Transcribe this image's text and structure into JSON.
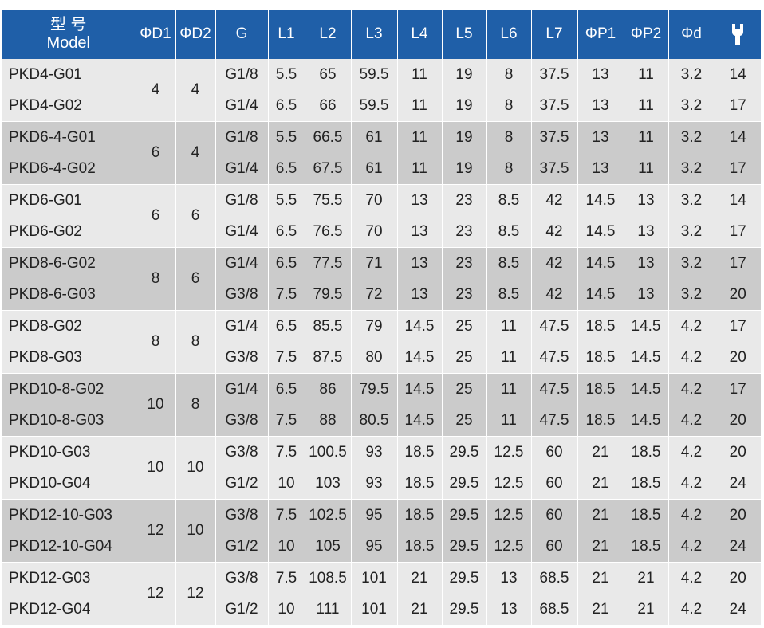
{
  "header": {
    "model_cn": "型 号",
    "model_en": "Model",
    "columns": [
      "ΦD1",
      "ΦD2",
      "G",
      "L1",
      "L2",
      "L3",
      "L4",
      "L5",
      "L6",
      "L7",
      "ΦP1",
      "ΦP2",
      "Φd"
    ],
    "last_column_icon": "open-end-wrench-icon"
  },
  "colors": {
    "header_bg": "#1f5fa8",
    "row_light": "#e9e9e9",
    "row_dark": "#cbcbcb"
  },
  "groups": [
    {
      "d1": "4",
      "d2": "4",
      "rows": [
        [
          "PKD4-G01",
          "G1/8",
          "5.5",
          "65",
          "59.5",
          "11",
          "19",
          "8",
          "37.5",
          "13",
          "11",
          "3.2",
          "14"
        ],
        [
          "PKD4-G02",
          "G1/4",
          "6.5",
          "66",
          "59.5",
          "11",
          "19",
          "8",
          "37.5",
          "13",
          "11",
          "3.2",
          "17"
        ]
      ]
    },
    {
      "d1": "6",
      "d2": "4",
      "rows": [
        [
          "PKD6-4-G01",
          "G1/8",
          "5.5",
          "66.5",
          "61",
          "11",
          "19",
          "8",
          "37.5",
          "13",
          "11",
          "3.2",
          "14"
        ],
        [
          "PKD6-4-G02",
          "G1/4",
          "6.5",
          "67.5",
          "61",
          "11",
          "19",
          "8",
          "37.5",
          "13",
          "11",
          "3.2",
          "17"
        ]
      ]
    },
    {
      "d1": "6",
      "d2": "6",
      "rows": [
        [
          "PKD6-G01",
          "G1/8",
          "5.5",
          "75.5",
          "70",
          "13",
          "23",
          "8.5",
          "42",
          "14.5",
          "13",
          "3.2",
          "14"
        ],
        [
          "PKD6-G02",
          "G1/4",
          "6.5",
          "76.5",
          "70",
          "13",
          "23",
          "8.5",
          "42",
          "14.5",
          "13",
          "3.2",
          "17"
        ]
      ]
    },
    {
      "d1": "8",
      "d2": "6",
      "rows": [
        [
          "PKD8-6-G02",
          "G1/4",
          "6.5",
          "77.5",
          "71",
          "13",
          "23",
          "8.5",
          "42",
          "14.5",
          "13",
          "3.2",
          "17"
        ],
        [
          "PKD8-6-G03",
          "G3/8",
          "7.5",
          "79.5",
          "72",
          "13",
          "23",
          "8.5",
          "42",
          "14.5",
          "13",
          "3.2",
          "20"
        ]
      ]
    },
    {
      "d1": "8",
      "d2": "8",
      "rows": [
        [
          "PKD8-G02",
          "G1/4",
          "6.5",
          "85.5",
          "79",
          "14.5",
          "25",
          "11",
          "47.5",
          "18.5",
          "14.5",
          "4.2",
          "17"
        ],
        [
          "PKD8-G03",
          "G3/8",
          "7.5",
          "87.5",
          "80",
          "14.5",
          "25",
          "11",
          "47.5",
          "18.5",
          "14.5",
          "4.2",
          "20"
        ]
      ]
    },
    {
      "d1": "10",
      "d2": "8",
      "rows": [
        [
          "PKD10-8-G02",
          "G1/4",
          "6.5",
          "86",
          "79.5",
          "14.5",
          "25",
          "11",
          "47.5",
          "18.5",
          "14.5",
          "4.2",
          "17"
        ],
        [
          "PKD10-8-G03",
          "G3/8",
          "7.5",
          "88",
          "80.5",
          "14.5",
          "25",
          "11",
          "47.5",
          "18.5",
          "14.5",
          "4.2",
          "20"
        ]
      ]
    },
    {
      "d1": "10",
      "d2": "10",
      "rows": [
        [
          "PKD10-G03",
          "G3/8",
          "7.5",
          "100.5",
          "93",
          "18.5",
          "29.5",
          "12.5",
          "60",
          "21",
          "18.5",
          "4.2",
          "20"
        ],
        [
          "PKD10-G04",
          "G1/2",
          "10",
          "103",
          "93",
          "18.5",
          "29.5",
          "12.5",
          "60",
          "21",
          "18.5",
          "4.2",
          "24"
        ]
      ]
    },
    {
      "d1": "12",
      "d2": "10",
      "rows": [
        [
          "PKD12-10-G03",
          "G3/8",
          "7.5",
          "102.5",
          "95",
          "18.5",
          "29.5",
          "12.5",
          "60",
          "21",
          "18.5",
          "4.2",
          "20"
        ],
        [
          "PKD12-10-G04",
          "G1/2",
          "10",
          "105",
          "95",
          "18.5",
          "29.5",
          "12.5",
          "60",
          "21",
          "18.5",
          "4.2",
          "24"
        ]
      ]
    },
    {
      "d1": "12",
      "d2": "12",
      "rows": [
        [
          "PKD12-G03",
          "G3/8",
          "7.5",
          "108.5",
          "101",
          "21",
          "29.5",
          "13",
          "68.5",
          "21",
          "21",
          "4.2",
          "20"
        ],
        [
          "PKD12-G04",
          "G1/2",
          "10",
          "111",
          "101",
          "21",
          "29.5",
          "13",
          "68.5",
          "21",
          "21",
          "4.2",
          "24"
        ]
      ]
    }
  ]
}
